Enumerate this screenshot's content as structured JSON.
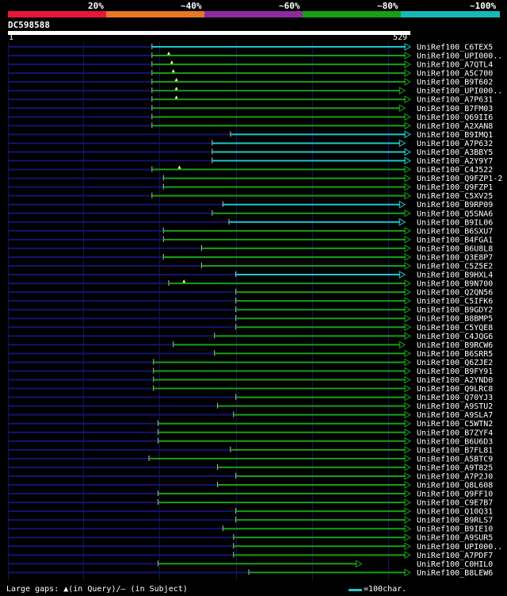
{
  "header": {
    "colors": [
      "#e8173a",
      "#e87722",
      "#8e2aa0",
      "#16a016",
      "#18b8b8"
    ],
    "percent_labels": [
      "20%",
      "~40%",
      "~60%",
      "~80%",
      "~100%"
    ],
    "query_id": "DC598588",
    "query_start": "1",
    "query_end": "529"
  },
  "chart_data": {
    "type": "alignment",
    "query_length": 529,
    "gridlines": [
      100,
      200,
      300,
      400,
      500
    ],
    "colors": {
      "full": "#1cc8c8",
      "partial": "#16a016",
      "gap_marker": "#ffff99",
      "grid": "#10106a"
    },
    "hits": [
      {
        "name": "UniRef100_C6TEX5",
        "start": 190,
        "end": 529,
        "color": "full",
        "marker": null
      },
      {
        "name": "UniRef100_UPI000..",
        "start": 190,
        "end": 529,
        "color": "partial",
        "marker": 212
      },
      {
        "name": "UniRef100_A7QTL4",
        "start": 190,
        "end": 529,
        "color": "partial",
        "marker": 216
      },
      {
        "name": "UniRef100_A5C700",
        "start": 190,
        "end": 529,
        "color": "partial",
        "marker": 218
      },
      {
        "name": "UniRef100_B9T602",
        "start": 190,
        "end": 529,
        "color": "partial",
        "marker": 222
      },
      {
        "name": "UniRef100_UPI000..",
        "start": 190,
        "end": 522,
        "color": "partial",
        "marker": 222
      },
      {
        "name": "UniRef100_A7P631",
        "start": 190,
        "end": 529,
        "color": "partial",
        "marker": 222
      },
      {
        "name": "UniRef100_B7FM03",
        "start": 190,
        "end": 522,
        "color": "partial",
        "marker": null
      },
      {
        "name": "UniRef100_Q69II6",
        "start": 190,
        "end": 529,
        "color": "partial",
        "marker": null
      },
      {
        "name": "UniRef100_A2XAN8",
        "start": 190,
        "end": 529,
        "color": "partial",
        "marker": null
      },
      {
        "name": "UniRef100_B9IMQ1",
        "start": 293,
        "end": 529,
        "color": "full",
        "marker": null
      },
      {
        "name": "UniRef100_A7P632",
        "start": 269,
        "end": 522,
        "color": "full",
        "marker": null
      },
      {
        "name": "UniRef100_A3BBY5",
        "start": 269,
        "end": 529,
        "color": "full",
        "marker": null
      },
      {
        "name": "UniRef100_A2Y9Y7",
        "start": 269,
        "end": 529,
        "color": "full",
        "marker": null
      },
      {
        "name": "UniRef100_C4J522",
        "start": 190,
        "end": 529,
        "color": "partial",
        "marker": 226
      },
      {
        "name": "UniRef100_Q9FZP1-2",
        "start": 205,
        "end": 529,
        "color": "partial",
        "marker": null
      },
      {
        "name": "UniRef100_Q9FZP1",
        "start": 205,
        "end": 529,
        "color": "partial",
        "marker": null
      },
      {
        "name": "UniRef100_C5XV25",
        "start": 190,
        "end": 529,
        "color": "partial",
        "marker": null
      },
      {
        "name": "UniRef100_B9RP09",
        "start": 283,
        "end": 522,
        "color": "full",
        "marker": null
      },
      {
        "name": "UniRef100_Q5SNA6",
        "start": 269,
        "end": 529,
        "color": "partial",
        "marker": null
      },
      {
        "name": "UniRef100_B9IL06",
        "start": 291,
        "end": 522,
        "color": "full",
        "marker": null
      },
      {
        "name": "UniRef100_B6SXU7",
        "start": 205,
        "end": 529,
        "color": "partial",
        "marker": null
      },
      {
        "name": "UniRef100_B4FGA1",
        "start": 205,
        "end": 529,
        "color": "partial",
        "marker": null
      },
      {
        "name": "UniRef100_B6U8L8",
        "start": 255,
        "end": 529,
        "color": "partial",
        "marker": null
      },
      {
        "name": "UniRef100_Q3E8P7",
        "start": 205,
        "end": 529,
        "color": "partial",
        "marker": null
      },
      {
        "name": "UniRef100_C5Z5E2",
        "start": 255,
        "end": 529,
        "color": "partial",
        "marker": null
      },
      {
        "name": "UniRef100_B9HXL4",
        "start": 300,
        "end": 522,
        "color": "full",
        "marker": null
      },
      {
        "name": "UniRef100_B9N700",
        "start": 212,
        "end": 529,
        "color": "partial",
        "marker": 232
      },
      {
        "name": "UniRef100_Q2QN56",
        "start": 300,
        "end": 529,
        "color": "partial",
        "marker": null
      },
      {
        "name": "UniRef100_C5IFK6",
        "start": 300,
        "end": 529,
        "color": "partial",
        "marker": null
      },
      {
        "name": "UniRef100_B9GDY2",
        "start": 300,
        "end": 529,
        "color": "partial",
        "marker": null
      },
      {
        "name": "UniRef100_B8BMP5",
        "start": 300,
        "end": 529,
        "color": "partial",
        "marker": null
      },
      {
        "name": "UniRef100_C5YQE8",
        "start": 300,
        "end": 529,
        "color": "partial",
        "marker": null
      },
      {
        "name": "UniRef100_C4JQG6",
        "start": 272,
        "end": 529,
        "color": "partial",
        "marker": null
      },
      {
        "name": "UniRef100_B9RCW6",
        "start": 218,
        "end": 522,
        "color": "partial",
        "marker": null
      },
      {
        "name": "UniRef100_B6SRR5",
        "start": 272,
        "end": 529,
        "color": "partial",
        "marker": null
      },
      {
        "name": "UniRef100_Q6ZJE2",
        "start": 192,
        "end": 529,
        "color": "partial",
        "marker": null
      },
      {
        "name": "UniRef100_B9FY91",
        "start": 192,
        "end": 529,
        "color": "partial",
        "marker": null
      },
      {
        "name": "UniRef100_A2YND0",
        "start": 192,
        "end": 529,
        "color": "partial",
        "marker": null
      },
      {
        "name": "UniRef100_Q9LRC8",
        "start": 192,
        "end": 529,
        "color": "partial",
        "marker": null
      },
      {
        "name": "UniRef100_Q70YJ3",
        "start": 300,
        "end": 529,
        "color": "partial",
        "marker": null
      },
      {
        "name": "UniRef100_A9STU2",
        "start": 276,
        "end": 529,
        "color": "partial",
        "marker": null
      },
      {
        "name": "UniRef100_A9SLA7",
        "start": 297,
        "end": 529,
        "color": "partial",
        "marker": null
      },
      {
        "name": "UniRef100_C5WTN2",
        "start": 198,
        "end": 529,
        "color": "partial",
        "marker": null
      },
      {
        "name": "UniRef100_B7ZYF4",
        "start": 198,
        "end": 529,
        "color": "partial",
        "marker": null
      },
      {
        "name": "UniRef100_B6U6D3",
        "start": 198,
        "end": 529,
        "color": "partial",
        "marker": null
      },
      {
        "name": "UniRef100_B7FL81",
        "start": 293,
        "end": 529,
        "color": "partial",
        "marker": null
      },
      {
        "name": "UniRef100_A5BTC9",
        "start": 186,
        "end": 529,
        "color": "partial",
        "marker": null
      },
      {
        "name": "UniRef100_A9T825",
        "start": 276,
        "end": 529,
        "color": "partial",
        "marker": null
      },
      {
        "name": "UniRef100_A7P2J0",
        "start": 300,
        "end": 529,
        "color": "partial",
        "marker": null
      },
      {
        "name": "UniRef100_Q8L608",
        "start": 276,
        "end": 529,
        "color": "partial",
        "marker": null
      },
      {
        "name": "UniRef100_Q9FF10",
        "start": 198,
        "end": 529,
        "color": "partial",
        "marker": null
      },
      {
        "name": "UniRef100_C9E7B7",
        "start": 198,
        "end": 529,
        "color": "partial",
        "marker": null
      },
      {
        "name": "UniRef100_Q10Q31",
        "start": 300,
        "end": 529,
        "color": "partial",
        "marker": null
      },
      {
        "name": "UniRef100_B9RLS7",
        "start": 300,
        "end": 529,
        "color": "partial",
        "marker": null
      },
      {
        "name": "UniRef100_B9IE10",
        "start": 283,
        "end": 529,
        "color": "partial",
        "marker": null
      },
      {
        "name": "UniRef100_A9SUR5",
        "start": 297,
        "end": 529,
        "color": "partial",
        "marker": null
      },
      {
        "name": "UniRef100_UPI000..",
        "start": 297,
        "end": 529,
        "color": "partial",
        "marker": null
      },
      {
        "name": "UniRef100_A7PDF7",
        "start": 297,
        "end": 529,
        "color": "partial",
        "marker": null
      },
      {
        "name": "UniRef100_C0HIL0",
        "start": 198,
        "end": 465,
        "color": "partial",
        "marker": null
      },
      {
        "name": "UniRef100_B8LEW6",
        "start": 317,
        "end": 529,
        "color": "partial",
        "marker": null
      }
    ]
  },
  "footer": {
    "legend_text": "Large gaps: ▲(in Query)/– (in Subject)",
    "scale_text": "=100char."
  }
}
